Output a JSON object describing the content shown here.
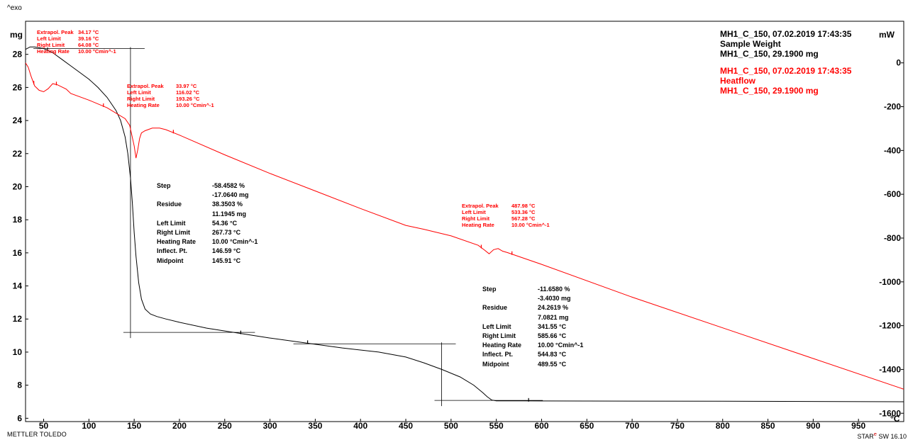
{
  "corner_label": "^exo",
  "footer": {
    "brand": "METTLER TOLEDO",
    "software_prefix": "STAR",
    "software_suffix": "e",
    "software_version": " SW 16.10"
  },
  "y_left_unit": "mg",
  "y_right_unit": "mW",
  "x_unit": "°C",
  "sample_info": {
    "weight": {
      "line1": "MH1_C_150, 07.02.2019 17:43:35",
      "line2": "Sample Weight",
      "line3": "MH1_C_150, 29.1900 mg"
    },
    "heatflow": {
      "line1": "MH1_C_150, 07.02.2019 17:43:35",
      "line2": "Heatflow",
      "line3": "MH1_C_150, 29.1900 mg"
    }
  },
  "annotations": {
    "peak1": [
      {
        "k": "Extrapol. Peak",
        "v": "34.17 °C"
      },
      {
        "k": "Left Limit",
        "v": "39.16 °C"
      },
      {
        "k": "Right Limit",
        "v": "64.08 °C"
      },
      {
        "k": "Heating Rate",
        "v": "10.00 °Cmin^-1"
      }
    ],
    "peak2": [
      {
        "k": "Extrapol. Peak",
        "v": "33.97 °C"
      },
      {
        "k": "Left Limit",
        "v": "116.02 °C"
      },
      {
        "k": "Right Limit",
        "v": "193.26 °C"
      },
      {
        "k": "Heating Rate",
        "v": "10.00 °Cmin^-1"
      }
    ],
    "peak3": [
      {
        "k": "Extrapol. Peak",
        "v": "487.98 °C"
      },
      {
        "k": "Left Limit",
        "v": "533.36 °C"
      },
      {
        "k": "Right Limit",
        "v": "567.28 °C"
      },
      {
        "k": "Heating Rate",
        "v": "10.00 °Cmin^-1"
      }
    ],
    "step1": [
      {
        "k": "Step",
        "v": "-58.4582 %"
      },
      {
        "k": "",
        "v": "-17.0640 mg"
      },
      {
        "k": "Residue",
        "v": "38.3503 %"
      },
      {
        "k": "",
        "v": "11.1945 mg"
      },
      {
        "k": "Left Limit",
        "v": "54.36 °C"
      },
      {
        "k": "Right Limit",
        "v": "267.73 °C"
      },
      {
        "k": "Heating Rate",
        "v": "10.00 °Cmin^-1"
      },
      {
        "k": "Inflect. Pt.",
        "v": "146.59 °C"
      },
      {
        "k": "Midpoint",
        "v": "145.91 °C"
      }
    ],
    "step2": [
      {
        "k": "Step",
        "v": "-11.6580 %"
      },
      {
        "k": "",
        "v": "-3.4030 mg"
      },
      {
        "k": "Residue",
        "v": "24.2619 %"
      },
      {
        "k": "",
        "v": "7.0821 mg"
      },
      {
        "k": "Left Limit",
        "v": "341.55 °C"
      },
      {
        "k": "Right Limit",
        "v": "585.66 °C"
      },
      {
        "k": "Heating Rate",
        "v": "10.00 °Cmin^-1"
      },
      {
        "k": "Inflect. Pt.",
        "v": "544.83 °C"
      },
      {
        "k": "Midpoint",
        "v": "489.55 °C"
      }
    ]
  },
  "chart_data": {
    "type": "line",
    "title": "",
    "xlabel": "°C",
    "ylabel": "mg",
    "y2label": "mW",
    "xlim": [
      30,
      1000
    ],
    "ylim": [
      5.8,
      30.0
    ],
    "y2lim": [
      -1638,
      190
    ],
    "x_ticks": [
      50,
      100,
      150,
      200,
      250,
      300,
      350,
      400,
      450,
      500,
      550,
      600,
      650,
      700,
      750,
      800,
      850,
      900,
      950
    ],
    "y_ticks": [
      6,
      8,
      10,
      12,
      14,
      16,
      18,
      20,
      22,
      24,
      26,
      28
    ],
    "y2_ticks": [
      0,
      -200,
      -400,
      -600,
      -800,
      -1000,
      -1200,
      -1400,
      -1600
    ],
    "grid": false,
    "series": [
      {
        "name": "Sample Weight",
        "axis": "left",
        "color": "#000000",
        "x": [
          30,
          35,
          40,
          50,
          60,
          70,
          80,
          90,
          100,
          110,
          120,
          130,
          135,
          140,
          143,
          146,
          148,
          150,
          152,
          155,
          158,
          162,
          168,
          175,
          185,
          200,
          230,
          265,
          300,
          340,
          380,
          420,
          450,
          470,
          490,
          510,
          525,
          535,
          540,
          545,
          550,
          580,
          650,
          800,
          1000
        ],
        "y": [
          28.3,
          28.45,
          28.45,
          28.35,
          28.1,
          27.7,
          27.3,
          26.9,
          26.5,
          26.0,
          25.4,
          24.6,
          24.0,
          23.0,
          22.0,
          20.5,
          19.0,
          17.2,
          15.8,
          14.2,
          13.2,
          12.6,
          12.3,
          12.15,
          12.0,
          11.8,
          11.45,
          11.15,
          10.85,
          10.55,
          10.25,
          10.0,
          9.7,
          9.35,
          8.95,
          8.5,
          8.0,
          7.55,
          7.3,
          7.1,
          7.05,
          7.05,
          7.04,
          7.03,
          7.0
        ]
      },
      {
        "name": "Heatflow",
        "axis": "right",
        "color": "#ff0000",
        "x": [
          30,
          33,
          36,
          40,
          45,
          50,
          55,
          60,
          65,
          70,
          75,
          80,
          100,
          120,
          140,
          145,
          150,
          152,
          154,
          156,
          158,
          162,
          170,
          178,
          185,
          200,
          250,
          300,
          350,
          400,
          450,
          470,
          500,
          530,
          537,
          542,
          547,
          552,
          557,
          562,
          600,
          700,
          800,
          900,
          1000
        ],
        "y": [
          0,
          -20,
          -60,
          -105,
          -125,
          -132,
          -118,
          -95,
          -100,
          -110,
          -120,
          -140,
          -170,
          -205,
          -255,
          -285,
          -380,
          -435,
          -395,
          -345,
          -320,
          -310,
          -298,
          -298,
          -305,
          -330,
          -420,
          -505,
          -585,
          -665,
          -742,
          -760,
          -790,
          -833,
          -855,
          -872,
          -853,
          -848,
          -860,
          -866,
          -920,
          -1070,
          -1210,
          -1350,
          -1490
        ]
      }
    ],
    "limit_markers": [
      {
        "series": "Sample Weight",
        "x": [
          54.36,
          267.73,
          341.55,
          585.66
        ]
      },
      {
        "series": "Heatflow",
        "x": [
          39.16,
          64.08,
          116.02,
          193.26,
          533.36,
          567.28
        ]
      }
    ],
    "step_constructions": [
      {
        "x_from": 54.36,
        "x_to": 267.73,
        "y_top": 28.35,
        "y_bottom": 11.19,
        "x_mid": 145.91
      },
      {
        "x_from": 341.55,
        "x_to": 585.66,
        "y_top": 10.5,
        "y_bottom": 7.08,
        "x_mid": 489.55
      }
    ]
  }
}
